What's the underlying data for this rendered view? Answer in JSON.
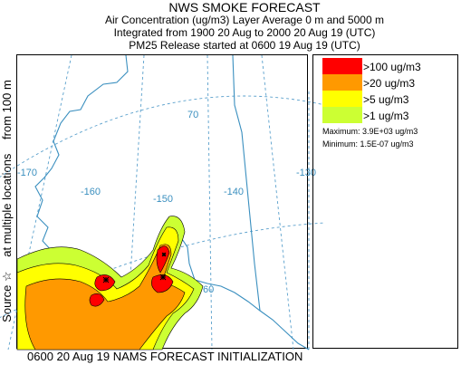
{
  "header": {
    "title": "NWS SMOKE FORECAST",
    "line1": "Air Concentration (ug/m3) Layer Average    0 m  and  5000 m",
    "line2": "Integrated from 1900 20 Aug to 2000 20 Aug 19 (UTC)",
    "line3": "PM25 Release started at 0600 19 Aug 19 (UTC)"
  },
  "side_label": {
    "part1": "Source ☆",
    "part2": "at multiple locations",
    "part3": "from   100 m"
  },
  "map": {
    "grid_labels": {
      "lon_170": "-170",
      "lon_160": "-160",
      "lon_150": "-150",
      "lon_140": "-140",
      "lon_130": "-130",
      "lat_70": "70",
      "lat_60": "60"
    }
  },
  "legend": {
    "items": [
      {
        "label": ">100 ug/m3",
        "color": "#ff0000"
      },
      {
        "label": ">20 ug/m3",
        "color": "#ff9900"
      },
      {
        "label": ">5 ug/m3",
        "color": "#ffff00"
      },
      {
        "label": ">1 ug/m3",
        "color": "#ccff33"
      }
    ],
    "maximum": "Maximum: 3.9E+03 ug/m3",
    "minimum": "Minimum: 1.5E-07 ug/m3"
  },
  "footer": "0600 20 Aug 19 NAMS FORECAST INITIALIZATION",
  "colors": {
    "coast": "#3a8fbf",
    "grid": "#5aa0cc",
    "contour": "#000000"
  }
}
